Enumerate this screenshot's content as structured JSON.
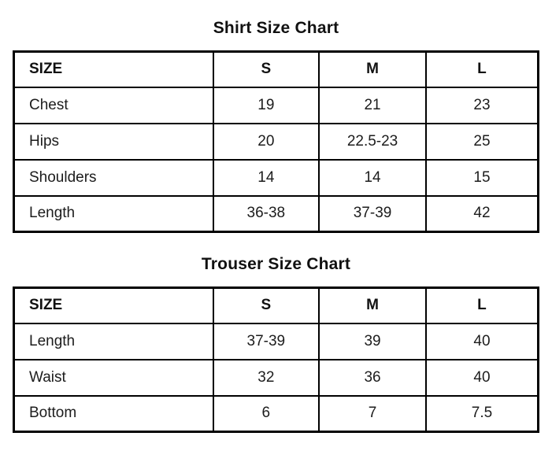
{
  "page": {
    "background": "#ffffff",
    "text_color": "#1c1c1c",
    "border_color": "#000000"
  },
  "shirt_chart": {
    "title": "Shirt Size Chart",
    "columns": [
      "SIZE",
      "S",
      "M",
      "L"
    ],
    "rows": [
      {
        "label": "Chest",
        "values": [
          "19",
          "21",
          "23"
        ]
      },
      {
        "label": "Hips",
        "values": [
          "20",
          "22.5-23",
          "25"
        ]
      },
      {
        "label": "Shoulders",
        "values": [
          "14",
          "14",
          "15"
        ]
      },
      {
        "label": "Length",
        "values": [
          "36-38",
          "37-39",
          "42"
        ]
      }
    ]
  },
  "trouser_chart": {
    "title": "Trouser Size Chart",
    "columns": [
      "SIZE",
      "S",
      "M",
      "L"
    ],
    "rows": [
      {
        "label": "Length",
        "values": [
          "37-39",
          "39",
          "40"
        ]
      },
      {
        "label": "Waist",
        "values": [
          "32",
          "36",
          "40"
        ]
      },
      {
        "label": "Bottom",
        "values": [
          "6",
          "7",
          "7.5"
        ]
      }
    ]
  },
  "chart_data": [
    {
      "type": "table",
      "title": "Shirt Size Chart",
      "columns": [
        "SIZE",
        "S",
        "M",
        "L"
      ],
      "rows": [
        [
          "Chest",
          "19",
          "21",
          "23"
        ],
        [
          "Hips",
          "20",
          "22.5-23",
          "25"
        ],
        [
          "Shoulders",
          "14",
          "14",
          "15"
        ],
        [
          "Length",
          "36-38",
          "37-39",
          "42"
        ]
      ]
    },
    {
      "type": "table",
      "title": "Trouser Size Chart",
      "columns": [
        "SIZE",
        "S",
        "M",
        "L"
      ],
      "rows": [
        [
          "Length",
          "37-39",
          "39",
          "40"
        ],
        [
          "Waist",
          "32",
          "36",
          "40"
        ],
        [
          "Bottom",
          "6",
          "7",
          "7.5"
        ]
      ]
    }
  ]
}
